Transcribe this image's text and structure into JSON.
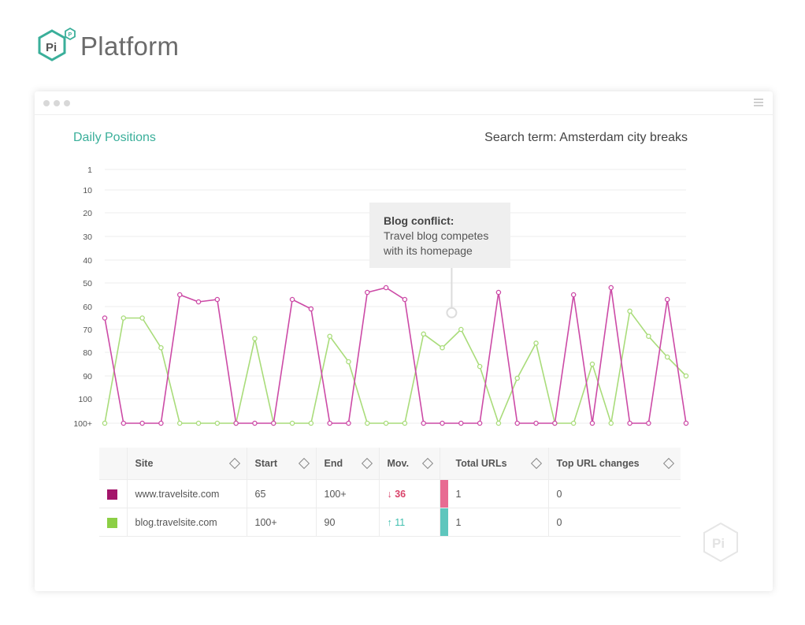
{
  "brand": {
    "logo_text": "Pi",
    "name": "Platform"
  },
  "window": {
    "chart_title": "Daily Positions",
    "search_term": "Search term: Amsterdam city breaks"
  },
  "tooltip": {
    "title": "Blog conflict:",
    "line1": "Travel blog competes",
    "line2": "with its homepage"
  },
  "colors": {
    "accent": "#3aaf9a",
    "series1": "#cc4aa6",
    "series2": "#a9dc7a",
    "swatch1": "#a3156a",
    "swatch2": "#8ccf45",
    "bar1": "#e86b92",
    "bar2": "#5ec6bd"
  },
  "chart_data": {
    "type": "line",
    "y_axis": {
      "reversed": true,
      "ticks": [
        1,
        10,
        20,
        30,
        40,
        50,
        60,
        70,
        80,
        90,
        100,
        101
      ],
      "tick_labels": [
        "1",
        "10",
        "20",
        "30",
        "40",
        "50",
        "60",
        "70",
        "80",
        "90",
        "100",
        "100+"
      ]
    },
    "x": [
      1,
      2,
      3,
      4,
      5,
      6,
      7,
      8,
      9,
      10,
      11,
      12,
      13,
      14,
      15,
      16,
      17,
      18,
      19,
      20,
      21,
      22,
      23,
      24,
      25,
      26,
      27,
      28,
      29,
      30,
      31,
      32
    ],
    "series": [
      {
        "color": "#cc4aa6",
        "values": [
          65,
          101,
          101,
          101,
          55,
          58,
          57,
          101,
          101,
          101,
          57,
          61,
          101,
          101,
          54,
          52,
          57,
          101,
          101,
          101,
          101,
          54,
          101,
          101,
          101,
          55,
          101,
          52,
          101,
          101,
          57,
          101
        ]
      },
      {
        "color": "#a9dc7a",
        "values": [
          101,
          65,
          65,
          78,
          101,
          101,
          101,
          101,
          74,
          101,
          101,
          101,
          73,
          84,
          101,
          101,
          101,
          72,
          78,
          70,
          86,
          101,
          91,
          76,
          101,
          101,
          85,
          101,
          62,
          73,
          82,
          90
        ]
      }
    ],
    "grid": true,
    "annotation": {
      "x": 19.5,
      "y": 62
    }
  },
  "table": {
    "headers": [
      "Site",
      "Start",
      "End",
      "Mov.",
      "Total URLs",
      "Top URL changes"
    ],
    "rows": [
      {
        "site": "www.travelsite.com",
        "start": "65",
        "end": "100+",
        "mov": "↓ 36",
        "total_urls": "1",
        "top_url_changes": "0"
      },
      {
        "site": "blog.travelsite.com",
        "start": "100+",
        "end": "90",
        "mov": "↑ 11",
        "total_urls": "1",
        "top_url_changes": "0"
      }
    ]
  },
  "watermark": {
    "text": "Pi"
  }
}
